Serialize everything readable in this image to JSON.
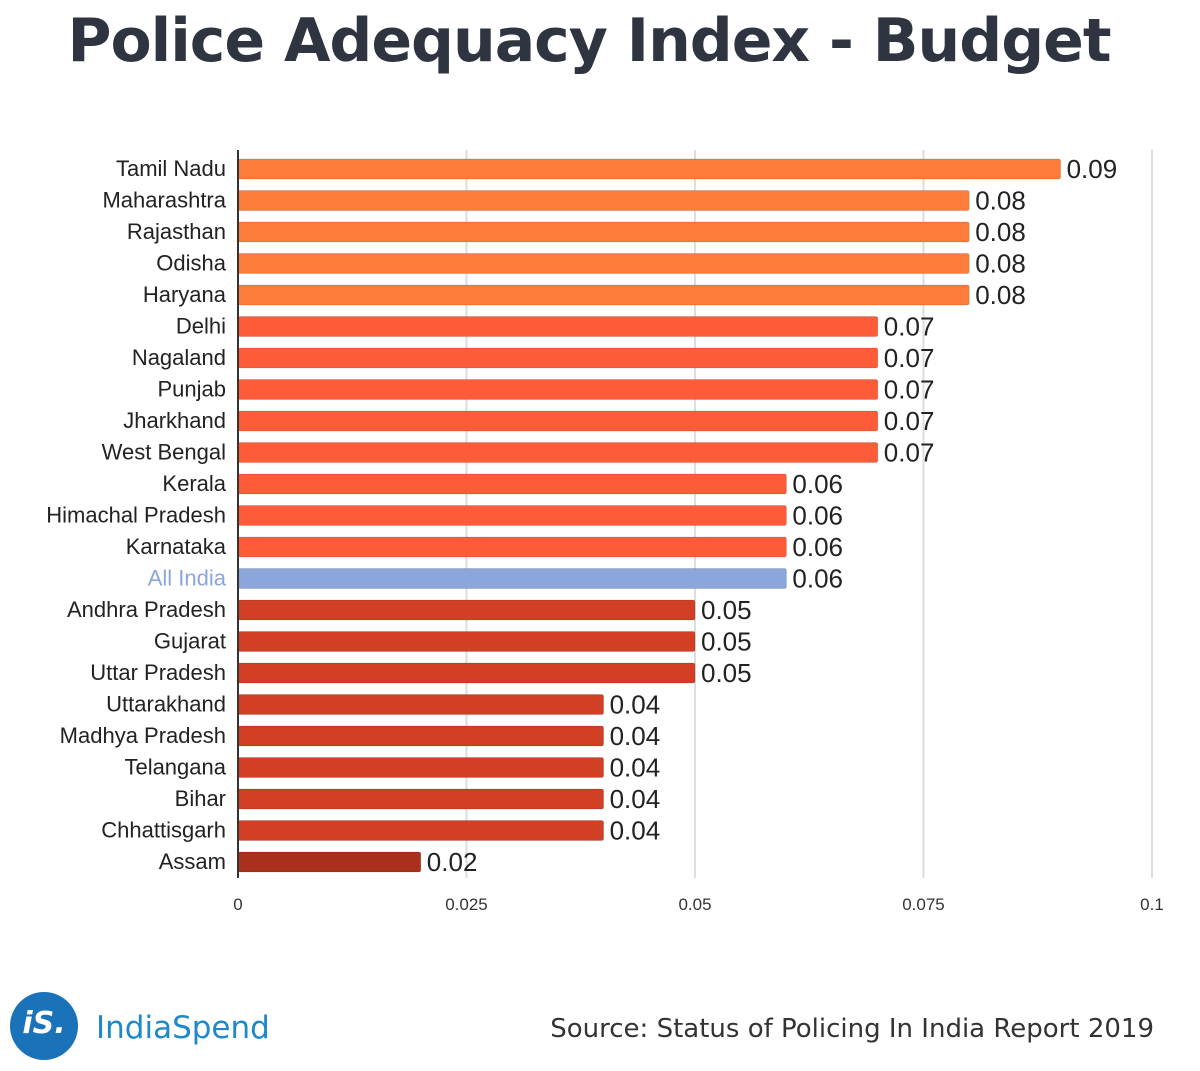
{
  "chart_data": {
    "type": "bar",
    "orientation": "horizontal",
    "title": "Police Adequacy Index - Budget",
    "categories": [
      "Tamil Nadu",
      "Maharashtra",
      "Rajasthan",
      "Odisha",
      "Haryana",
      "Delhi",
      "Nagaland",
      "Punjab",
      "Jharkhand",
      "West Bengal",
      "Kerala",
      "Himachal Pradesh",
      "Karnataka",
      "All India",
      "Andhra Pradesh",
      "Gujarat",
      "Uttar Pradesh",
      "Uttarakhand",
      "Madhya Pradesh",
      "Telangana",
      "Bihar",
      "Chhattisgarh",
      "Assam"
    ],
    "values": [
      0.09,
      0.08,
      0.08,
      0.08,
      0.08,
      0.07,
      0.07,
      0.07,
      0.07,
      0.07,
      0.06,
      0.06,
      0.06,
      0.06,
      0.05,
      0.05,
      0.05,
      0.04,
      0.04,
      0.04,
      0.04,
      0.04,
      0.02
    ],
    "value_labels": [
      "0.09",
      "0.08",
      "0.08",
      "0.08",
      "0.08",
      "0.07",
      "0.07",
      "0.07",
      "0.07",
      "0.07",
      "0.06",
      "0.06",
      "0.06",
      "0.06",
      "0.05",
      "0.05",
      "0.05",
      "0.04",
      "0.04",
      "0.04",
      "0.04",
      "0.04",
      "0.02"
    ],
    "highlight": "All India",
    "xlim": [
      0,
      0.1
    ],
    "xticks": [
      0,
      0.025,
      0.05,
      0.075,
      0.1
    ],
    "xtick_labels": [
      "0",
      "0.025",
      "0.05",
      "0.075",
      "0.1"
    ],
    "xlabel": "",
    "ylabel": "",
    "grid": true,
    "colors": {
      "0.09": "#fd7c3a",
      "0.08": "#fd7c3a",
      "0.07": "#fe5b38",
      "0.06": "#fe5b38",
      "0.05": "#d13f25",
      "0.04": "#d13f25",
      "0.02": "#a8301d",
      "highlight": "#8aa6db",
      "highlight_label": "#8aa6db",
      "label": "#222222",
      "grid": "#dddddd",
      "axis": "#333333"
    }
  },
  "footer": {
    "logo_text": "iS.",
    "brand": "IndiaSpend",
    "source": "Source: Status of Policing In India Report 2019"
  }
}
